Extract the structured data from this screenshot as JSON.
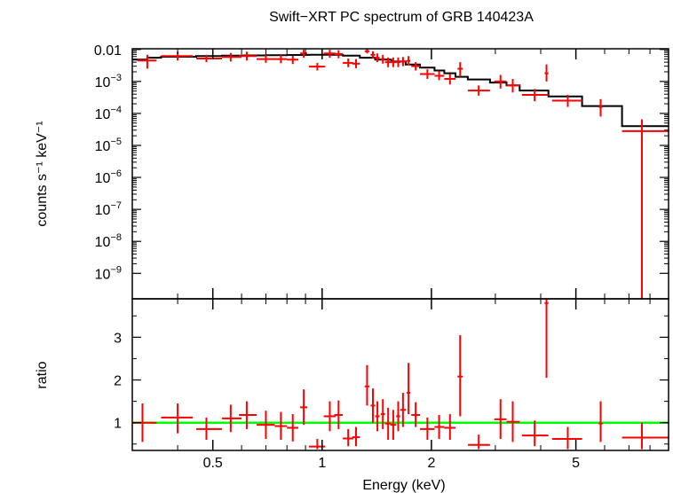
{
  "chart_data": [
    {
      "type": "scatter",
      "panel": "spectrum",
      "title": "Swift−XRT PC spectrum of GRB 140423A",
      "xlabel": "Energy (keV)",
      "ylabel": "counts s⁻¹ keV⁻¹",
      "xscale": "log",
      "yscale": "log",
      "xlim": [
        0.3,
        9.0
      ],
      "ylim": [
        1.6e-10,
        0.0105
      ],
      "y_tick_labels": [
        {
          "value": 0.01,
          "label": "0.01"
        },
        {
          "value": 0.001,
          "base": "10",
          "exp": "−3"
        },
        {
          "value": 0.0001,
          "base": "10",
          "exp": "−4"
        },
        {
          "value": 1e-05,
          "base": "10",
          "exp": "−5"
        },
        {
          "value": 1e-06,
          "base": "10",
          "exp": "−6"
        },
        {
          "value": 1e-07,
          "base": "10",
          "exp": "−7"
        },
        {
          "value": 1e-08,
          "base": "10",
          "exp": "−8"
        },
        {
          "value": 1e-09,
          "base": "10",
          "exp": "−9"
        }
      ],
      "series": [
        {
          "name": "data",
          "color": "#ff0000",
          "points": [
            {
              "x": 0.33,
              "xlo": 0.31,
              "xhi": 0.35,
              "y": 0.0045,
              "ylo": 0.0025,
              "yhi": 0.0068
            },
            {
              "x": 0.4,
              "xlo": 0.36,
              "xhi": 0.44,
              "y": 0.0062,
              "ylo": 0.0045,
              "yhi": 0.0085
            },
            {
              "x": 0.48,
              "xlo": 0.45,
              "xhi": 0.53,
              "y": 0.0052,
              "ylo": 0.004,
              "yhi": 0.0068
            },
            {
              "x": 0.56,
              "xlo": 0.53,
              "xhi": 0.6,
              "y": 0.0058,
              "ylo": 0.0042,
              "yhi": 0.0078
            },
            {
              "x": 0.62,
              "xlo": 0.59,
              "xhi": 0.66,
              "y": 0.0062,
              "ylo": 0.0045,
              "yhi": 0.0085
            },
            {
              "x": 0.7,
              "xlo": 0.66,
              "xhi": 0.74,
              "y": 0.005,
              "ylo": 0.0038,
              "yhi": 0.0066
            },
            {
              "x": 0.77,
              "xlo": 0.74,
              "xhi": 0.8,
              "y": 0.005,
              "ylo": 0.0037,
              "yhi": 0.0066
            },
            {
              "x": 0.83,
              "xlo": 0.8,
              "xhi": 0.86,
              "y": 0.0048,
              "ylo": 0.0035,
              "yhi": 0.0064
            },
            {
              "x": 0.89,
              "xlo": 0.87,
              "xhi": 0.91,
              "y": 0.0075,
              "ylo": 0.0055,
              "yhi": 0.0098
            },
            {
              "x": 0.97,
              "xlo": 0.92,
              "xhi": 1.02,
              "y": 0.0029,
              "ylo": 0.0022,
              "yhi": 0.0038
            },
            {
              "x": 1.05,
              "xlo": 1.01,
              "xhi": 1.09,
              "y": 0.0075,
              "ylo": 0.0055,
              "yhi": 0.0098
            },
            {
              "x": 1.11,
              "xlo": 1.08,
              "xhi": 1.14,
              "y": 0.0072,
              "ylo": 0.0053,
              "yhi": 0.0095
            },
            {
              "x": 1.18,
              "xlo": 1.14,
              "xhi": 1.22,
              "y": 0.0038,
              "ylo": 0.0028,
              "yhi": 0.0052
            },
            {
              "x": 1.24,
              "xlo": 1.21,
              "xhi": 1.27,
              "y": 0.0036,
              "ylo": 0.0026,
              "yhi": 0.005
            },
            {
              "x": 1.33,
              "xlo": 1.31,
              "xhi": 1.35,
              "y": 0.0088,
              "ylo": 0.0075,
              "yhi": 0.0102
            },
            {
              "x": 1.38,
              "xlo": 1.36,
              "xhi": 1.4,
              "y": 0.0068,
              "ylo": 0.0052,
              "yhi": 0.0088
            },
            {
              "x": 1.42,
              "xlo": 1.4,
              "xhi": 1.44,
              "y": 0.0055,
              "ylo": 0.004,
              "yhi": 0.0075
            },
            {
              "x": 1.47,
              "xlo": 1.45,
              "xhi": 1.49,
              "y": 0.005,
              "ylo": 0.0036,
              "yhi": 0.0068
            },
            {
              "x": 1.52,
              "xlo": 1.49,
              "xhi": 1.55,
              "y": 0.004,
              "ylo": 0.0028,
              "yhi": 0.0056
            },
            {
              "x": 1.57,
              "xlo": 1.54,
              "xhi": 1.6,
              "y": 0.004,
              "ylo": 0.0028,
              "yhi": 0.0056
            },
            {
              "x": 1.62,
              "xlo": 1.6,
              "xhi": 1.64,
              "y": 0.004,
              "ylo": 0.0028,
              "yhi": 0.0056
            },
            {
              "x": 1.67,
              "xlo": 1.64,
              "xhi": 1.7,
              "y": 0.0042,
              "ylo": 0.003,
              "yhi": 0.0058
            },
            {
              "x": 1.73,
              "xlo": 1.71,
              "xhi": 1.75,
              "y": 0.0044,
              "ylo": 0.0032,
              "yhi": 0.0062
            },
            {
              "x": 1.81,
              "xlo": 1.76,
              "xhi": 1.86,
              "y": 0.003,
              "ylo": 0.0022,
              "yhi": 0.004
            },
            {
              "x": 1.95,
              "xlo": 1.86,
              "xhi": 2.04,
              "y": 0.0017,
              "ylo": 0.0012,
              "yhi": 0.0024
            },
            {
              "x": 2.1,
              "xlo": 2.04,
              "xhi": 2.17,
              "y": 0.0015,
              "ylo": 0.0011,
              "yhi": 0.0021
            },
            {
              "x": 2.25,
              "xlo": 2.17,
              "xhi": 2.33,
              "y": 0.0012,
              "ylo": 0.0008,
              "yhi": 0.0017
            },
            {
              "x": 2.4,
              "xlo": 2.36,
              "xhi": 2.44,
              "y": 0.0025,
              "ylo": 0.0014,
              "yhi": 0.004
            },
            {
              "x": 2.7,
              "xlo": 2.52,
              "xhi": 2.9,
              "y": 0.00052,
              "ylo": 0.00036,
              "yhi": 0.00075
            },
            {
              "x": 3.1,
              "xlo": 2.98,
              "xhi": 3.22,
              "y": 0.001,
              "ylo": 0.0006,
              "yhi": 0.0016
            },
            {
              "x": 3.35,
              "xlo": 3.22,
              "xhi": 3.5,
              "y": 0.00075,
              "ylo": 0.00045,
              "yhi": 0.0012
            },
            {
              "x": 3.85,
              "xlo": 3.55,
              "xhi": 4.2,
              "y": 0.00038,
              "ylo": 0.00024,
              "yhi": 0.00058
            },
            {
              "x": 4.15,
              "xlo": 4.1,
              "xhi": 4.2,
              "y": 0.0018,
              "ylo": 0.001,
              "yhi": 0.0034
            },
            {
              "x": 4.75,
              "xlo": 4.3,
              "xhi": 5.2,
              "y": 0.00025,
              "ylo": 0.00016,
              "yhi": 0.00038
            },
            {
              "x": 5.85,
              "xlo": 5.78,
              "xhi": 5.92,
              "y": 0.00016,
              "ylo": 8e-05,
              "yhi": 0.00028
            },
            {
              "x": 7.6,
              "xlo": 6.7,
              "xhi": 9.0,
              "y": 2.8e-05,
              "ylo": 1.6e-10,
              "yhi": 6.5e-05
            }
          ]
        },
        {
          "name": "model",
          "color": "#000000",
          "step": true,
          "edges": [
            0.3,
            0.33,
            0.36,
            0.45,
            0.53,
            0.6,
            0.7,
            0.8,
            0.92,
            1.02,
            1.14,
            1.27,
            1.4,
            1.55,
            1.7,
            1.86,
            2.04,
            2.17,
            2.33,
            2.52,
            2.9,
            3.22,
            3.5,
            4.2,
            5.2,
            6.7,
            9.0
          ],
          "values": [
            0.0048,
            0.0055,
            0.0059,
            0.0062,
            0.0064,
            0.0065,
            0.0066,
            0.0067,
            0.0068,
            0.0068,
            0.0064,
            0.0055,
            0.0048,
            0.0042,
            0.0034,
            0.0027,
            0.0022,
            0.0018,
            0.0014,
            0.00115,
            0.00092,
            0.00075,
            0.00052,
            0.00034,
            0.00017,
            4e-05
          ]
        }
      ]
    },
    {
      "type": "scatter",
      "panel": "ratio",
      "xlabel": "Energy (keV)",
      "ylabel": "ratio",
      "xscale": "log",
      "xlim": [
        0.3,
        9.0
      ],
      "ylim": [
        0.35,
        3.9
      ],
      "y_ticks": [
        1,
        2,
        3
      ],
      "x_ticks": [
        0.5,
        1,
        2,
        5
      ],
      "reference_line": {
        "y": 1,
        "color": "#00ff00"
      },
      "series": [
        {
          "name": "ratio",
          "color": "#ff0000",
          "points": [
            {
              "x": 0.32,
              "xlo": 0.3,
              "xhi": 0.35,
              "y": 1.0,
              "ylo": 0.55,
              "yhi": 1.45
            },
            {
              "x": 0.4,
              "xlo": 0.36,
              "xhi": 0.44,
              "y": 1.12,
              "ylo": 0.75,
              "yhi": 1.45
            },
            {
              "x": 0.48,
              "xlo": 0.45,
              "xhi": 0.53,
              "y": 0.85,
              "ylo": 0.6,
              "yhi": 1.12
            },
            {
              "x": 0.56,
              "xlo": 0.53,
              "xhi": 0.6,
              "y": 1.1,
              "ylo": 0.78,
              "yhi": 1.42
            },
            {
              "x": 0.62,
              "xlo": 0.59,
              "xhi": 0.66,
              "y": 1.18,
              "ylo": 0.85,
              "yhi": 1.5
            },
            {
              "x": 0.7,
              "xlo": 0.66,
              "xhi": 0.74,
              "y": 0.95,
              "ylo": 0.62,
              "yhi": 1.28
            },
            {
              "x": 0.77,
              "xlo": 0.74,
              "xhi": 0.8,
              "y": 0.92,
              "ylo": 0.6,
              "yhi": 1.25
            },
            {
              "x": 0.83,
              "xlo": 0.8,
              "xhi": 0.86,
              "y": 0.88,
              "ylo": 0.56,
              "yhi": 1.2
            },
            {
              "x": 0.89,
              "xlo": 0.87,
              "xhi": 0.91,
              "y": 1.36,
              "ylo": 0.95,
              "yhi": 1.78
            },
            {
              "x": 0.97,
              "xlo": 0.92,
              "xhi": 1.02,
              "y": 0.44,
              "ylo": 0.38,
              "yhi": 0.62
            },
            {
              "x": 1.05,
              "xlo": 1.01,
              "xhi": 1.09,
              "y": 1.15,
              "ylo": 0.8,
              "yhi": 1.5
            },
            {
              "x": 1.11,
              "xlo": 1.08,
              "xhi": 1.14,
              "y": 1.18,
              "ylo": 0.85,
              "yhi": 1.52
            },
            {
              "x": 1.18,
              "xlo": 1.14,
              "xhi": 1.22,
              "y": 0.63,
              "ylo": 0.45,
              "yhi": 0.85
            },
            {
              "x": 1.24,
              "xlo": 1.21,
              "xhi": 1.27,
              "y": 0.66,
              "ylo": 0.45,
              "yhi": 0.9
            },
            {
              "x": 1.33,
              "xlo": 1.31,
              "xhi": 1.35,
              "y": 1.85,
              "ylo": 1.4,
              "yhi": 2.35
            },
            {
              "x": 1.38,
              "xlo": 1.36,
              "xhi": 1.4,
              "y": 1.4,
              "ylo": 1.0,
              "yhi": 1.8
            },
            {
              "x": 1.42,
              "xlo": 1.4,
              "xhi": 1.44,
              "y": 1.15,
              "ylo": 0.8,
              "yhi": 1.5
            },
            {
              "x": 1.47,
              "xlo": 1.45,
              "xhi": 1.49,
              "y": 1.2,
              "ylo": 0.85,
              "yhi": 1.55
            },
            {
              "x": 1.52,
              "xlo": 1.49,
              "xhi": 1.55,
              "y": 0.98,
              "ylo": 0.6,
              "yhi": 1.35
            },
            {
              "x": 1.57,
              "xlo": 1.54,
              "xhi": 1.6,
              "y": 0.95,
              "ylo": 0.6,
              "yhi": 1.3
            },
            {
              "x": 1.62,
              "xlo": 1.6,
              "xhi": 1.64,
              "y": 1.15,
              "ylo": 0.8,
              "yhi": 1.5
            },
            {
              "x": 1.67,
              "xlo": 1.64,
              "xhi": 1.7,
              "y": 1.3,
              "ylo": 0.9,
              "yhi": 1.7
            },
            {
              "x": 1.73,
              "xlo": 1.71,
              "xhi": 1.75,
              "y": 1.7,
              "ylo": 1.2,
              "yhi": 2.4
            },
            {
              "x": 1.81,
              "xlo": 1.76,
              "xhi": 1.86,
              "y": 1.18,
              "ylo": 0.9,
              "yhi": 1.48
            },
            {
              "x": 1.95,
              "xlo": 1.86,
              "xhi": 2.04,
              "y": 0.85,
              "ylo": 0.6,
              "yhi": 1.12
            },
            {
              "x": 2.1,
              "xlo": 2.04,
              "xhi": 2.17,
              "y": 0.9,
              "ylo": 0.62,
              "yhi": 1.18
            },
            {
              "x": 2.25,
              "xlo": 2.17,
              "xhi": 2.33,
              "y": 0.88,
              "ylo": 0.6,
              "yhi": 1.2
            },
            {
              "x": 2.4,
              "xlo": 2.36,
              "xhi": 2.44,
              "y": 2.08,
              "ylo": 1.15,
              "yhi": 3.05
            },
            {
              "x": 2.7,
              "xlo": 2.52,
              "xhi": 2.9,
              "y": 0.48,
              "ylo": 0.38,
              "yhi": 0.72
            },
            {
              "x": 3.1,
              "xlo": 2.98,
              "xhi": 3.22,
              "y": 1.08,
              "ylo": 0.62,
              "yhi": 1.55
            },
            {
              "x": 3.35,
              "xlo": 3.22,
              "xhi": 3.5,
              "y": 1.02,
              "ylo": 0.55,
              "yhi": 1.5
            },
            {
              "x": 3.85,
              "xlo": 3.55,
              "xhi": 4.2,
              "y": 0.7,
              "ylo": 0.45,
              "yhi": 1.05
            },
            {
              "x": 4.15,
              "xlo": 4.1,
              "xhi": 4.2,
              "y": 3.8,
              "ylo": 2.05,
              "yhi": 3.9
            },
            {
              "x": 4.75,
              "xlo": 4.3,
              "xhi": 5.2,
              "y": 0.62,
              "ylo": 0.38,
              "yhi": 0.9
            },
            {
              "x": 5.85,
              "xlo": 5.78,
              "xhi": 5.92,
              "y": 0.98,
              "ylo": 0.55,
              "yhi": 1.5
            },
            {
              "x": 7.6,
              "xlo": 6.7,
              "xhi": 9.0,
              "y": 0.65,
              "ylo": 0.38,
              "yhi": 1.0
            }
          ]
        }
      ]
    }
  ]
}
